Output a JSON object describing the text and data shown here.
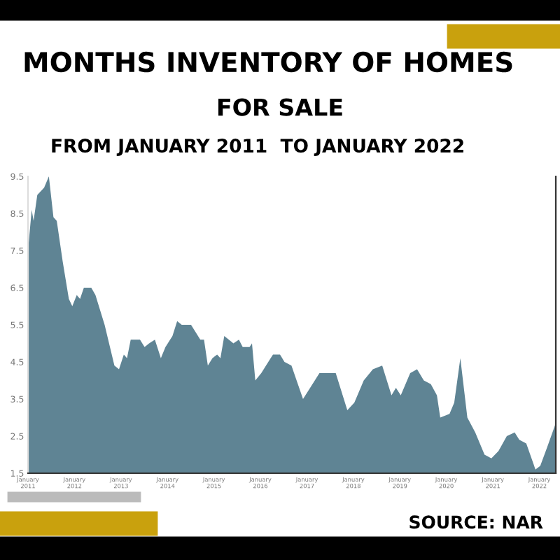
{
  "chart_data": {
    "type": "area",
    "title": "MONTHS INVENTORY OF HOMES\nFOR SALE",
    "subtitle": "FROM JANUARY 2011  TO JANUARY 2022",
    "annotations": [
      "SOURCE: NAR"
    ],
    "x": [
      "2011-01-01",
      "2011-01-30",
      "2011-02-14",
      "2011-03-15",
      "2011-05-08",
      "2011-06-14",
      "2011-07-20",
      "2011-08-15",
      "2011-10-01",
      "2011-11-18",
      "2011-12-15",
      "2012-01-19",
      "2012-02-14",
      "2012-03-15",
      "2012-05-12",
      "2012-06-14",
      "2012-08-25",
      "2012-11-10",
      "2012-12-16",
      "2013-01-23",
      "2013-02-17",
      "2013-03-18",
      "2013-04-23",
      "2013-05-30",
      "2013-07-05",
      "2013-08-10",
      "2013-09-24",
      "2013-11-10",
      "2013-12-16",
      "2014-02-09",
      "2014-03-18",
      "2014-04-23",
      "2014-07-05",
      "2014-09-16",
      "2014-10-15",
      "2014-11-14",
      "2014-12-20",
      "2015-01-26",
      "2015-02-21",
      "2015-03-23",
      "2015-06-03",
      "2015-07-16",
      "2015-08-15",
      "2015-10-08",
      "2015-10-27",
      "2015-11-22",
      "2016-01-08",
      "2016-02-14",
      "2016-04-09",
      "2016-06-03",
      "2016-07-08",
      "2016-09-01",
      "2016-12-01",
      "2017-01-26",
      "2017-04-09",
      "2017-08-15",
      "2017-11-14",
      "2018-01-08",
      "2018-03-23",
      "2018-06-03",
      "2018-08-15",
      "2018-10-27",
      "2018-12-01",
      "2019-01-08",
      "2019-03-23",
      "2019-05-16",
      "2019-07-08",
      "2019-09-01",
      "2019-10-19",
      "2019-11-14",
      "2020-01-26",
      "2020-03-03",
      "2020-04-20",
      "2020-06-14",
      "2020-08-15",
      "2020-10-27",
      "2020-12-20",
      "2021-02-14",
      "2021-04-20",
      "2021-06-21",
      "2021-07-27",
      "2021-09-20",
      "2021-12-01",
      "2022-01-08",
      "2022-03-03",
      "2022-05-05"
    ],
    "series": [
      {
        "color": "#5f8494",
        "values": [
          7.5,
          8.6,
          8.3,
          9.0,
          9.2,
          9.5,
          8.4,
          8.3,
          7.2,
          6.2,
          6.0,
          6.3,
          6.2,
          6.5,
          6.5,
          6.3,
          5.5,
          4.4,
          4.3,
          4.7,
          4.6,
          5.1,
          5.1,
          5.1,
          4.9,
          5.0,
          5.1,
          4.6,
          4.9,
          5.2,
          5.6,
          5.5,
          5.5,
          5.1,
          5.1,
          4.4,
          4.6,
          4.7,
          4.6,
          5.2,
          5.0,
          5.1,
          4.9,
          4.9,
          5.0,
          4.0,
          4.2,
          4.4,
          4.7,
          4.7,
          4.5,
          4.4,
          3.5,
          3.8,
          4.2,
          4.2,
          3.2,
          3.4,
          4.0,
          4.3,
          4.4,
          3.6,
          3.8,
          3.6,
          4.2,
          4.3,
          4.0,
          3.9,
          3.6,
          3.0,
          3.1,
          3.4,
          4.6,
          3.0,
          2.6,
          2.0,
          1.9,
          2.1,
          2.5,
          2.6,
          2.4,
          2.3,
          1.6,
          1.7,
          2.2,
          2.8
        ]
      }
    ],
    "xlim": [
      "2011-01-01",
      "2022-05-10"
    ],
    "xticks": [
      {
        "value": "2011-01-01",
        "label": "January\n2011"
      },
      {
        "value": "2012-01-01",
        "label": "January\n2012"
      },
      {
        "value": "2013-01-01",
        "label": "January\n2013"
      },
      {
        "value": "2014-01-01",
        "label": "January\n2014"
      },
      {
        "value": "2015-01-01",
        "label": "January\n2015"
      },
      {
        "value": "2016-01-01",
        "label": "January\n2016"
      },
      {
        "value": "2017-01-01",
        "label": "January\n2017"
      },
      {
        "value": "2018-01-01",
        "label": "January\n2018"
      },
      {
        "value": "2019-01-01",
        "label": "January\n2019"
      },
      {
        "value": "2020-01-01",
        "label": "January\n2020"
      },
      {
        "value": "2021-01-01",
        "label": "January\n2021"
      },
      {
        "value": "2022-01-01",
        "label": "January\n2022"
      }
    ],
    "ylim": [
      1.5,
      9.5
    ],
    "yticks": [
      1.5,
      2.5,
      3.5,
      4.5,
      5.5,
      6.5,
      7.5,
      8.5,
      9.5
    ],
    "grid": false,
    "legend": false
  }
}
